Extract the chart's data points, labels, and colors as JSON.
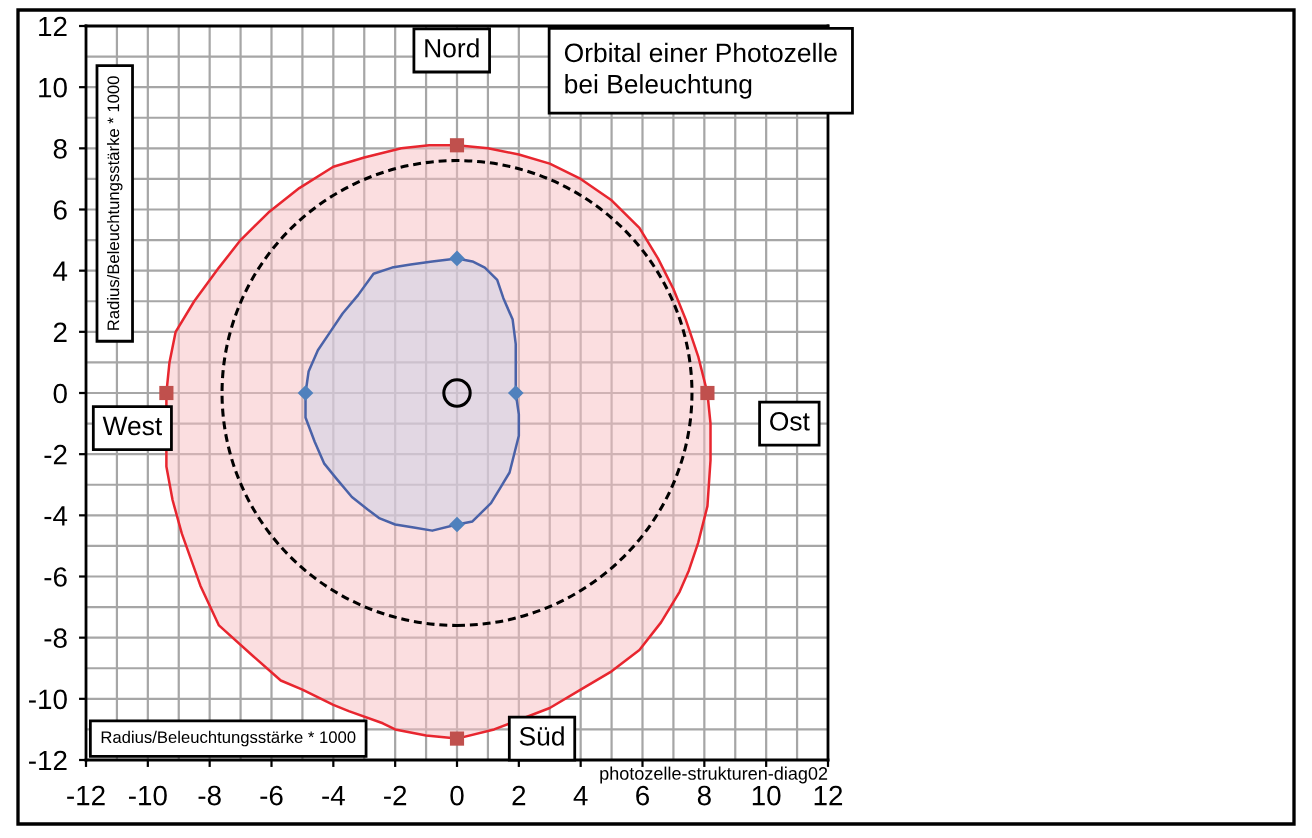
{
  "chart_data": {
    "type": "area",
    "title": "Orbital einer Photozelle\nbei Beleuchtung",
    "xlabel": "Radius/Beleuchtungsstärke * 1000",
    "ylabel": "Radius/Beleuchtungsstärke * 1000",
    "annotations": [
      "Nord",
      "West",
      "Ost",
      "Süd",
      "photozelle-strukturen-diag02"
    ],
    "xlim": [
      -12,
      12
    ],
    "ylim": [
      -12,
      12
    ],
    "xticks": [
      -12,
      -10,
      -8,
      -6,
      -4,
      -2,
      0,
      2,
      4,
      6,
      8,
      10,
      12
    ],
    "yticks": [
      -12,
      -10,
      -8,
      -6,
      -4,
      -2,
      0,
      2,
      4,
      6,
      8,
      10,
      12
    ],
    "grid": true,
    "series": [
      {
        "color": "#e8262f",
        "x": [
          0,
          1.0,
          2.0,
          3.0,
          4.0,
          5.0,
          5.9,
          6.5,
          7.0,
          7.4,
          7.8,
          8.1,
          8.2,
          8.2,
          8.1,
          7.8,
          7.5,
          7.2,
          6.6,
          5.9,
          5.0,
          4.0,
          3.0,
          1.2,
          0,
          -1.0,
          -2.0,
          -2.4,
          -3.5,
          -4.0,
          -5.0,
          -5.7,
          -6.6,
          -7.7,
          -8.3,
          -8.9,
          -9.2,
          -9.4,
          -9.4,
          -9.3,
          -9.1,
          -8.5,
          -7.7,
          -7.0,
          -6.1,
          -5.1,
          -4.0,
          -3.0,
          -1.8,
          -0.9
        ],
        "values": [
          8.1,
          8.0,
          7.8,
          7.5,
          7.0,
          6.3,
          5.4,
          4.4,
          3.4,
          2.4,
          1.2,
          0,
          -1.0,
          -2.2,
          -3.7,
          -4.9,
          -5.8,
          -6.5,
          -7.5,
          -8.4,
          -9.1,
          -9.7,
          -10.3,
          -11.0,
          -11.3,
          -11.2,
          -11.0,
          -10.8,
          -10.4,
          -10.2,
          -9.7,
          -9.4,
          -8.6,
          -7.6,
          -6.3,
          -4.6,
          -3.5,
          -2.4,
          0,
          1.0,
          2.0,
          3.0,
          4.1,
          5.0,
          5.9,
          6.7,
          7.4,
          7.7,
          8.0,
          8.1
        ]
      },
      {
        "type": "scatter",
        "marker": "square",
        "color": "#c0504d",
        "x": [
          0,
          8.1,
          0,
          -9.4
        ],
        "values": [
          8.1,
          0,
          -11.3,
          0
        ]
      },
      {
        "color": "#4a62a8",
        "x": [
          0,
          0.5,
          0.9,
          1.3,
          1.5,
          1.8,
          1.9,
          1.9,
          1.9,
          2.0,
          2.0,
          1.7,
          1.4,
          1.1,
          0.5,
          0,
          -0.8,
          -1.4,
          -2.0,
          -2.5,
          -2.9,
          -3.4,
          -3.9,
          -4.3,
          -4.6,
          -4.9,
          -4.9,
          -4.8,
          -4.5,
          -4.1,
          -3.7,
          -3.2,
          -2.7,
          -2.1,
          -1.5,
          -0.8
        ],
        "values": [
          4.4,
          4.3,
          4.1,
          3.7,
          3.1,
          2.4,
          1.6,
          0.8,
          0,
          -0.7,
          -1.4,
          -2.6,
          -3.1,
          -3.6,
          -4.2,
          -4.3,
          -4.5,
          -4.4,
          -4.3,
          -4.1,
          -3.8,
          -3.4,
          -2.8,
          -2.3,
          -1.6,
          -0.8,
          0,
          0.7,
          1.4,
          2.0,
          2.6,
          3.2,
          3.9,
          4.1,
          4.2,
          4.3
        ]
      },
      {
        "type": "scatter",
        "marker": "diamond",
        "color": "#4f81bd",
        "x": [
          0,
          1.9,
          0,
          -4.9
        ],
        "values": [
          4.4,
          0,
          -4.3,
          0
        ]
      },
      {
        "type": "scatter",
        "marker": "circle",
        "color": "#000000",
        "x": [
          0
        ],
        "values": [
          0
        ]
      }
    ]
  }
}
